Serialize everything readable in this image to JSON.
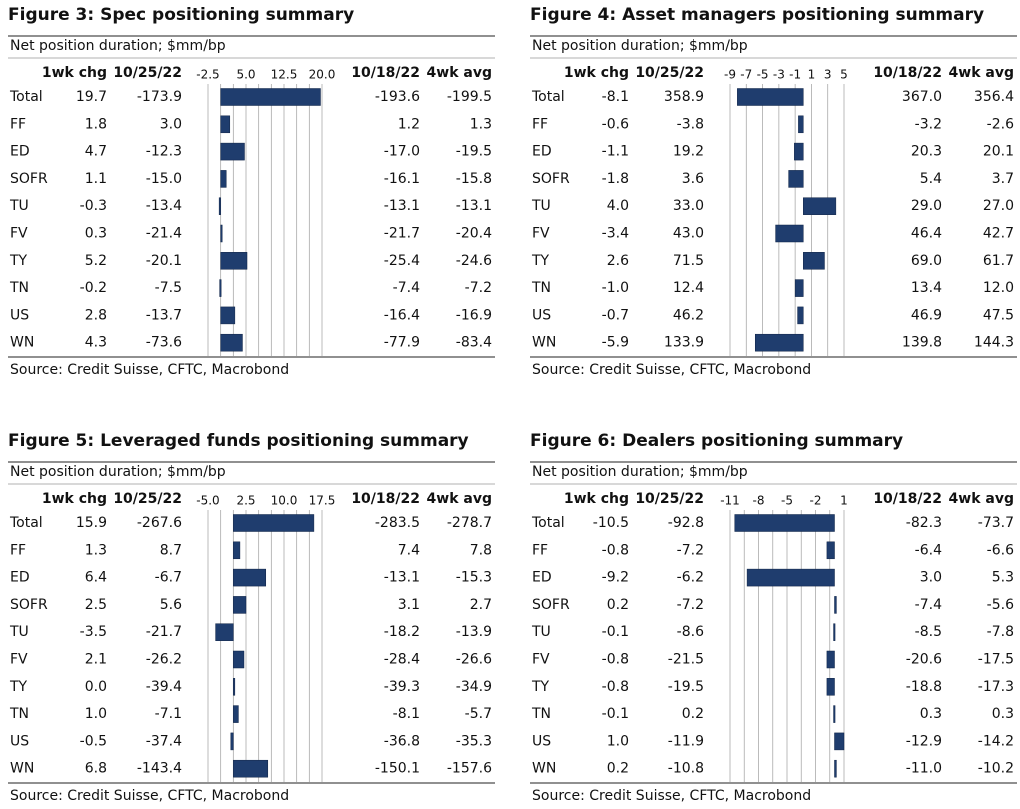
{
  "figures": [
    {
      "title": "Figure 3: Spec positioning summary",
      "subtitle": "Net position duration; $mm/bp",
      "headers": [
        "1wk chg",
        "10/25/22",
        "10/18/22",
        "4wk avg"
      ],
      "categories": [
        "Total",
        "FF",
        "ED",
        "SOFR",
        "TU",
        "FV",
        "TY",
        "TN",
        "US",
        "WN"
      ],
      "chg": [
        19.7,
        1.8,
        4.7,
        1.1,
        -0.3,
        0.3,
        5.2,
        -0.2,
        2.8,
        4.3
      ],
      "chg_labels": [
        "19.7",
        "1.8",
        "4.7",
        "1.1",
        "-0.3",
        "0.3",
        "5.2",
        "-0.2",
        "2.8",
        "4.3"
      ],
      "current": [
        "-173.9",
        "3.0",
        "-12.3",
        "-15.0",
        "-13.4",
        "-21.4",
        "-20.1",
        "-7.5",
        "-13.7",
        "-73.6"
      ],
      "previous": [
        "-193.6",
        "1.2",
        "-17.0",
        "-16.1",
        "-13.1",
        "-21.7",
        "-25.4",
        "-7.4",
        "-16.4",
        "-77.9"
      ],
      "avg": [
        "-199.5",
        "1.3",
        "-19.5",
        "-15.8",
        "-13.1",
        "-20.4",
        "-24.6",
        "-7.2",
        "-16.9",
        "-83.4"
      ],
      "xlim": [
        -2.5,
        20
      ],
      "ticks": [
        {
          "value": -2.5,
          "label": "-2.5"
        },
        {
          "value": 5,
          "label": "5.0"
        },
        {
          "value": 12.5,
          "label": "12.5"
        },
        {
          "value": 20,
          "label": "20.0"
        }
      ],
      "grid": [
        -2.5,
        0,
        2.5,
        5,
        7.5,
        10,
        12.5,
        15,
        17.5,
        20
      ],
      "source": "Source: Credit Suisse, CFTC, Macrobond"
    },
    {
      "title": "Figure 4: Asset managers positioning summary",
      "subtitle": "Net position duration; $mm/bp",
      "headers": [
        "1wk chg",
        "10/25/22",
        "10/18/22",
        "4wk avg"
      ],
      "categories": [
        "Total",
        "FF",
        "ED",
        "SOFR",
        "TU",
        "FV",
        "TY",
        "TN",
        "US",
        "WN"
      ],
      "chg": [
        -8.1,
        -0.6,
        -1.1,
        -1.8,
        4.0,
        -3.4,
        2.6,
        -1.0,
        -0.7,
        -5.9
      ],
      "chg_labels": [
        "-8.1",
        "-0.6",
        "-1.1",
        "-1.8",
        "4.0",
        "-3.4",
        "2.6",
        "-1.0",
        "-0.7",
        "-5.9"
      ],
      "current": [
        "358.9",
        "-3.8",
        "19.2",
        "3.6",
        "33.0",
        "43.0",
        "71.5",
        "12.4",
        "46.2",
        "133.9"
      ],
      "previous": [
        "367.0",
        "-3.2",
        "20.3",
        "5.4",
        "29.0",
        "46.4",
        "69.0",
        "13.4",
        "46.9",
        "139.8"
      ],
      "avg": [
        "356.4",
        "-2.6",
        "20.1",
        "3.7",
        "27.0",
        "42.7",
        "61.7",
        "12.0",
        "47.5",
        "144.3"
      ],
      "xlim": [
        -9,
        5
      ],
      "ticks": [
        -9,
        -7,
        -5,
        -3,
        -1,
        1,
        3,
        5
      ],
      "grid": [
        -9,
        -7,
        -5,
        -3,
        -1,
        1,
        3,
        5
      ],
      "source": "Source: Credit Suisse, CFTC, Macrobond"
    },
    {
      "title": "Figure 5: Leveraged funds positioning summary",
      "subtitle": "Net position duration; $mm/bp",
      "headers": [
        "1wk chg",
        "10/25/22",
        "10/18/22",
        "4wk avg"
      ],
      "categories": [
        "Total",
        "FF",
        "ED",
        "SOFR",
        "TU",
        "FV",
        "TY",
        "TN",
        "US",
        "WN"
      ],
      "chg": [
        15.9,
        1.3,
        6.4,
        2.5,
        -3.5,
        2.1,
        0,
        1.0,
        -0.5,
        6.8
      ],
      "chg_labels": [
        "15.9",
        "1.3",
        "6.4",
        "2.5",
        "-3.5",
        "2.1",
        "0.0",
        "1.0",
        "-0.5",
        "6.8"
      ],
      "current": [
        "-267.6",
        "8.7",
        "-6.7",
        "5.6",
        "-21.7",
        "-26.2",
        "-39.4",
        "-7.1",
        "-37.4",
        "-143.4"
      ],
      "previous": [
        "-283.5",
        "7.4",
        "-13.1",
        "3.1",
        "-18.2",
        "-28.4",
        "-39.3",
        "-8.1",
        "-36.8",
        "-150.1"
      ],
      "avg": [
        "-278.7",
        "7.8",
        "-15.3",
        "2.7",
        "-13.9",
        "-26.6",
        "-34.9",
        "-5.7",
        "-35.3",
        "-157.6"
      ],
      "xlim": [
        -5,
        17.5
      ],
      "ticks": [
        {
          "value": -5,
          "label": "-5.0"
        },
        {
          "value": 2.5,
          "label": "2.5"
        },
        {
          "value": 10,
          "label": "10.0"
        },
        {
          "value": 17.5,
          "label": "17.5"
        }
      ],
      "grid": [
        -5,
        -2.5,
        0,
        2.5,
        5,
        7.5,
        10,
        12.5,
        15,
        17.5
      ],
      "source": "Source: Credit Suisse, CFTC, Macrobond"
    },
    {
      "title": "Figure 6: Dealers positioning summary",
      "subtitle": "Net position duration; $mm/bp",
      "headers": [
        "1wk chg",
        "10/25/22",
        "10/18/22",
        "4wk avg"
      ],
      "categories": [
        "Total",
        "FF",
        "ED",
        "SOFR",
        "TU",
        "FV",
        "TY",
        "TN",
        "US",
        "WN"
      ],
      "chg": [
        -10.5,
        -0.8,
        -9.2,
        0.2,
        -0.1,
        -0.8,
        -0.8,
        -0.1,
        1.0,
        0.2
      ],
      "chg_labels": [
        "-10.5",
        "-0.8",
        "-9.2",
        "0.2",
        "-0.1",
        "-0.8",
        "-0.8",
        "-0.1",
        "1.0",
        "0.2"
      ],
      "current": [
        "-92.8",
        "-7.2",
        "-6.2",
        "-7.2",
        "-8.6",
        "-21.5",
        "-19.5",
        "0.2",
        "-11.9",
        "-10.8"
      ],
      "previous": [
        "-82.3",
        "-6.4",
        "3.0",
        "-7.4",
        "-8.5",
        "-20.6",
        "-18.8",
        "0.3",
        "-12.9",
        "-11.0"
      ],
      "avg": [
        "-73.7",
        "-6.6",
        "5.3",
        "-5.6",
        "-7.8",
        "-17.5",
        "-17.3",
        "0.3",
        "-14.2",
        "-10.2"
      ],
      "xlim": [
        -11,
        1
      ],
      "ticks": [
        -11,
        -8,
        -5,
        -2,
        1
      ],
      "grid": [
        -11,
        -9.5,
        -8,
        -6.5,
        -5,
        -3.5,
        -2,
        -0.5,
        1
      ],
      "source": "Source: Credit Suisse, CFTC, Macrobond"
    }
  ]
}
